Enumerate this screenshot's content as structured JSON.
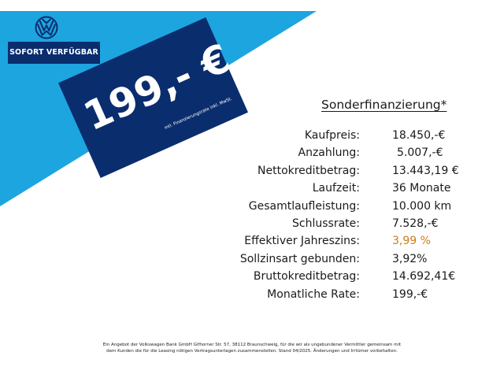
{
  "brand": {
    "logo": "vw-logo-icon"
  },
  "colors": {
    "light_blue": "#1da5e0",
    "dark_blue": "#0a2d6e",
    "accent_orange": "#d07a1a"
  },
  "badge": {
    "label": "SOFORT VERFÜGBAR"
  },
  "price_panel": {
    "price": "199,- €",
    "note": "mtl. Finanzierungsrate inkl. MwSt."
  },
  "financing": {
    "title": "Sonderfinanzierung*",
    "rows": [
      {
        "label": "Kaufpreis:",
        "value": "18.450,-€"
      },
      {
        "label": "Anzahlung:",
        "value": "5.007,-€"
      },
      {
        "label": "Nettokreditbetrag:",
        "value": "13.443,19 €"
      },
      {
        "label": "Laufzeit:",
        "value": "36 Monate"
      },
      {
        "label": "Gesamtlaufleistung:",
        "value": "10.000 km"
      },
      {
        "label": "Schlussrate:",
        "value": "7.528,-€"
      },
      {
        "label": "Effektiver Jahreszins:",
        "value": "3,99 %"
      },
      {
        "label": "Sollzinsart gebunden:",
        "value": "3,92%"
      },
      {
        "label": "Bruttokreditbetrag:",
        "value": "14.692,41€"
      },
      {
        "label": "Monatliche Rate:",
        "value": "199,-€"
      }
    ]
  },
  "footer": {
    "line1": "Ein Angebot der Volkswagen Bank GmbH Gifhorner Str. 57, 38112 Braunschweig, für die wir als ungebundener Vermittler gemeinsam mit",
    "line2": "dem Kunden die für die Leasing nötigen Vertragsunterlagen zusammenstellen. Stand 04/2025. Änderungen und Irrtümer vorbehalten."
  }
}
